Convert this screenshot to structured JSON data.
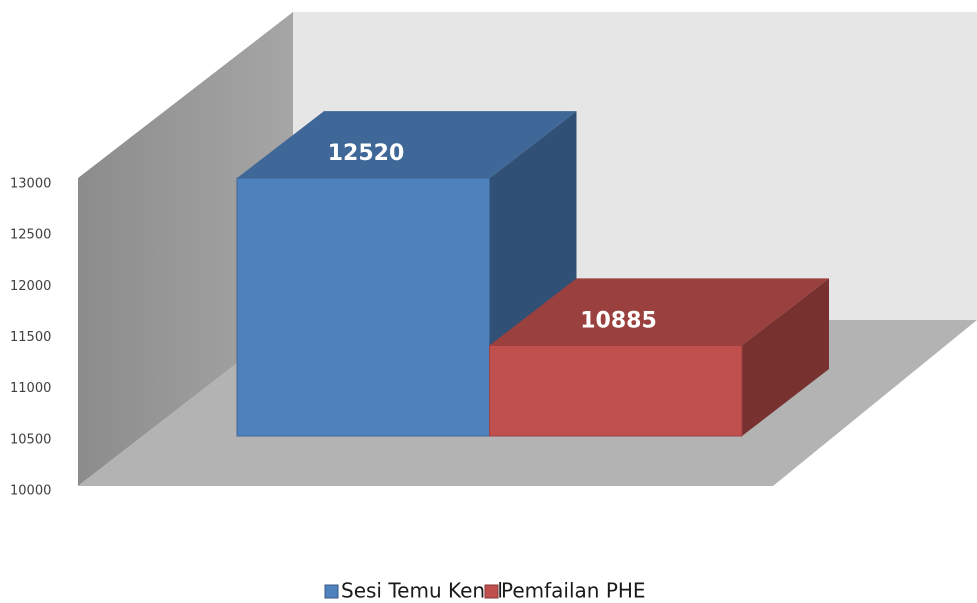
{
  "chart_data": {
    "type": "bar3d",
    "categories": [
      null
    ],
    "series": [
      {
        "name": "Sesi Temu Kenal",
        "color": "#4f81bd",
        "values": [
          12520
        ]
      },
      {
        "name": "Pemfailan PHE",
        "color": "#c0504d",
        "values": [
          10885
        ]
      }
    ],
    "ylim": [
      10000,
      13000
    ],
    "yticks": [
      10000,
      10500,
      11000,
      11500,
      12000,
      12500,
      13000
    ],
    "grid": false,
    "legend": "bottom"
  }
}
